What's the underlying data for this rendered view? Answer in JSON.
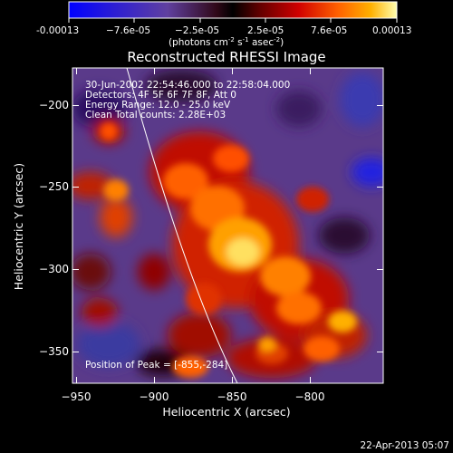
{
  "colorbar": {
    "ticks": [
      "-0.00013",
      "−7.6e-05",
      "−2.5e-05",
      "2.5e-05",
      "7.6e-05",
      "0.00013"
    ],
    "units_main": "(photons cm",
    "units_exp1": "-2",
    "units_mid": " s",
    "units_exp2": "-1",
    "units_tail": " asec",
    "units_exp3": "-2",
    "units_close": ")"
  },
  "plot": {
    "title": "Reconstructed RHESSI Image",
    "xlabel": "Heliocentric X (arcsec)",
    "ylabel": "Heliocentric Y (arcsec)",
    "xticks": [
      "−950",
      "−900",
      "−850",
      "−800"
    ],
    "yticks": [
      "−200",
      "−250",
      "−300",
      "−350"
    ],
    "info_line1": "30-Jun-2002 22:54:46.000 to 22:58:04.000",
    "info_line2": "Detectors: 4F 5F 6F 7F 8F, Att 0",
    "info_line3": "Energy Range: 12.0 - 25.0 keV",
    "info_line4": "Clean    Total counts: 2.28E+03",
    "peak_label": "Position of Peak = [-855,-284]"
  },
  "timestamp": "22-Apr-2013 05:07",
  "colors": {
    "background": "#000000",
    "foreground": "#ffffff",
    "colormap": [
      "#1414ff",
      "#5a3cc0",
      "#6a4a9a",
      "#5a1a50",
      "#3a0000",
      "#9a0000",
      "#e01000",
      "#ff6a00",
      "#ffb000",
      "#ffff80"
    ]
  }
}
